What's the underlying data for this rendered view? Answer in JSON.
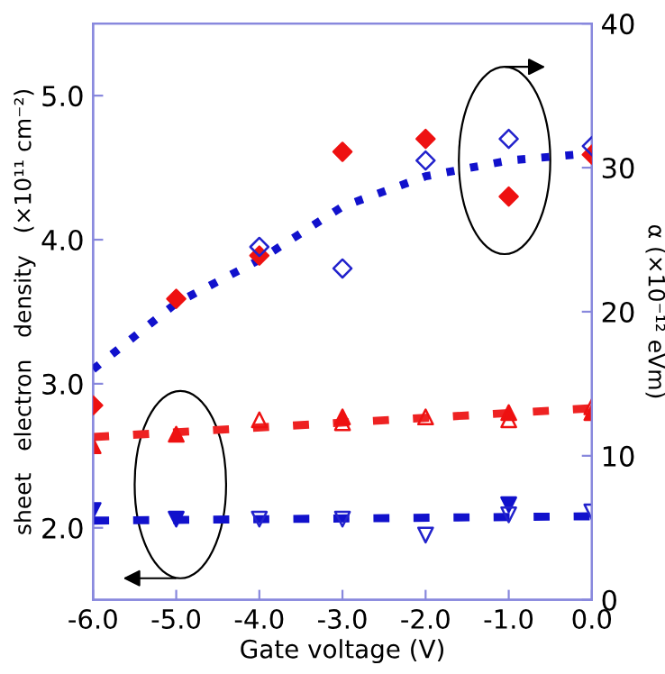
{
  "chart_data": {
    "type": "scatter",
    "xlabel": "Gate voltage (V)",
    "ylabel": "sheet   electron   density   (×10¹¹ cm⁻²)",
    "y2label": "α (×10⁻¹² eVm)",
    "xlim": [
      -6.0,
      0.0
    ],
    "xticks": [
      {
        "value": -6,
        "label": "-6.0"
      },
      {
        "value": -5,
        "label": "-5.0"
      },
      {
        "value": -4,
        "label": "-4.0"
      },
      {
        "value": -3,
        "label": "-3.0"
      },
      {
        "value": -2,
        "label": "-2.0"
      },
      {
        "value": -1,
        "label": "-1.0"
      },
      {
        "value": 0,
        "label": "0.0"
      }
    ],
    "ylim": [
      1.5,
      5.5
    ],
    "yticks": [
      {
        "value": 2,
        "label": "2.0"
      },
      {
        "value": 3,
        "label": "3.0"
      },
      {
        "value": 4,
        "label": "4.0"
      },
      {
        "value": 5,
        "label": "5.0"
      }
    ],
    "y2lim": [
      0,
      40
    ],
    "y2ticks": [
      0,
      10,
      20,
      30,
      40
    ],
    "grid": false,
    "legend": false,
    "series": [
      {
        "axis": "y2",
        "color": "#ee1111",
        "marker": "diamond",
        "x": [
          -6,
          -5,
          -4,
          -3,
          -2,
          -1,
          0
        ],
        "values": [
          13.5,
          20.9,
          23.9,
          31.1,
          32.0,
          28.0,
          30.9
        ]
      },
      {
        "axis": "y2",
        "color": "#2222cc",
        "marker": "diamond-open",
        "x": [
          -4,
          -3,
          -2,
          -1,
          0
        ],
        "values": [
          24.5,
          23.0,
          30.5,
          32.0,
          31.5
        ]
      },
      {
        "type": "line",
        "axis": "y2",
        "color": "#1111cc",
        "line_style": "dotted",
        "x": [
          -6,
          -5,
          -4,
          -3,
          -2,
          -1,
          0
        ],
        "values": [
          16.0,
          20.6,
          23.6,
          27.3,
          29.4,
          30.5,
          31.0
        ]
      },
      {
        "type": "line",
        "axis": "y",
        "color": "#ee2222",
        "line_style": "dashed",
        "x": [
          -6,
          0
        ],
        "values": [
          2.63,
          2.83
        ]
      },
      {
        "type": "line",
        "axis": "y",
        "color": "#1111cc",
        "line_style": "dashed",
        "x": [
          -6,
          0
        ],
        "values": [
          2.05,
          2.08
        ]
      },
      {
        "axis": "y",
        "color": "#ee1111",
        "marker": "triangle",
        "x": [
          -6,
          -5,
          -3,
          -1,
          0
        ],
        "values": [
          2.57,
          2.65,
          2.77,
          2.8,
          2.8
        ]
      },
      {
        "axis": "y",
        "color": "#ee1111",
        "marker": "triangle-open",
        "x": [
          -4,
          -3,
          -2,
          -1,
          0
        ],
        "values": [
          2.75,
          2.73,
          2.77,
          2.75,
          2.84
        ]
      },
      {
        "axis": "y",
        "color": "#1111cc",
        "marker": "triangle-down",
        "x": [
          -6,
          -5,
          -1
        ],
        "values": [
          2.12,
          2.06,
          2.16
        ]
      },
      {
        "axis": "y",
        "color": "#2222cc",
        "marker": "triangle-down-open",
        "x": [
          -4,
          -3,
          -2,
          -1,
          0
        ],
        "values": [
          2.06,
          2.06,
          1.95,
          2.09,
          2.11
        ]
      }
    ]
  }
}
